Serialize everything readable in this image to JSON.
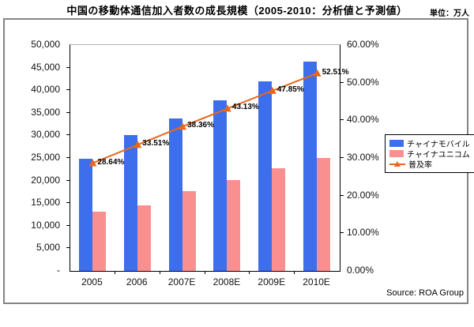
{
  "page": {
    "title": "中国の移動体通信加入者数の成長規模（2005-2010：分析値と予測値）",
    "unit_label": "単位：万人",
    "source": "Source: ROA Group"
  },
  "chart_data": {
    "type": "bar",
    "subtype": "combo-bar-line-dual-axis",
    "title": "中国の移動体通信加入者数の成長規模（2005-2010：分析値と予測値）",
    "unit": "万人",
    "categories": [
      "2005",
      "2006",
      "2007E",
      "2008E",
      "2009E",
      "2010E"
    ],
    "series": [
      {
        "name": "チャイナモバイル",
        "key": "china-mobile",
        "type": "bar",
        "axis": "left",
        "color": "#3D6EEC",
        "values": [
          24800,
          30100,
          33700,
          37700,
          42000,
          46300
        ]
      },
      {
        "name": "チャイナユニコム",
        "key": "china-unicom",
        "type": "bar",
        "axis": "left",
        "color": "#F9908F",
        "values": [
          13100,
          14500,
          17700,
          20200,
          22700,
          25000
        ]
      },
      {
        "name": "普及率",
        "key": "penetration-rate",
        "type": "line",
        "axis": "right",
        "color": "#E8671B",
        "values": [
          28.64,
          33.51,
          38.36,
          43.13,
          47.85,
          52.51
        ],
        "point_labels": [
          "28.64%",
          "33.51%",
          "38.36%",
          "43.13%",
          "47.85%",
          "52.51%"
        ]
      }
    ],
    "left_axis": {
      "min": 0,
      "max": 50000,
      "step": 5000,
      "tick_labels": [
        "50,000",
        "45,000",
        "40,000",
        "35,000",
        "30,000",
        "25,000",
        "20,000",
        "15,000",
        "10,000",
        "5,000",
        "-"
      ]
    },
    "right_axis": {
      "min": 0,
      "max": 60,
      "step": 10,
      "tick_labels": [
        "60.00%",
        "50.00%",
        "40.00%",
        "30.00%",
        "20.00%",
        "10.00%",
        "0.00%"
      ]
    },
    "grid": "off",
    "legend_position": "right"
  }
}
